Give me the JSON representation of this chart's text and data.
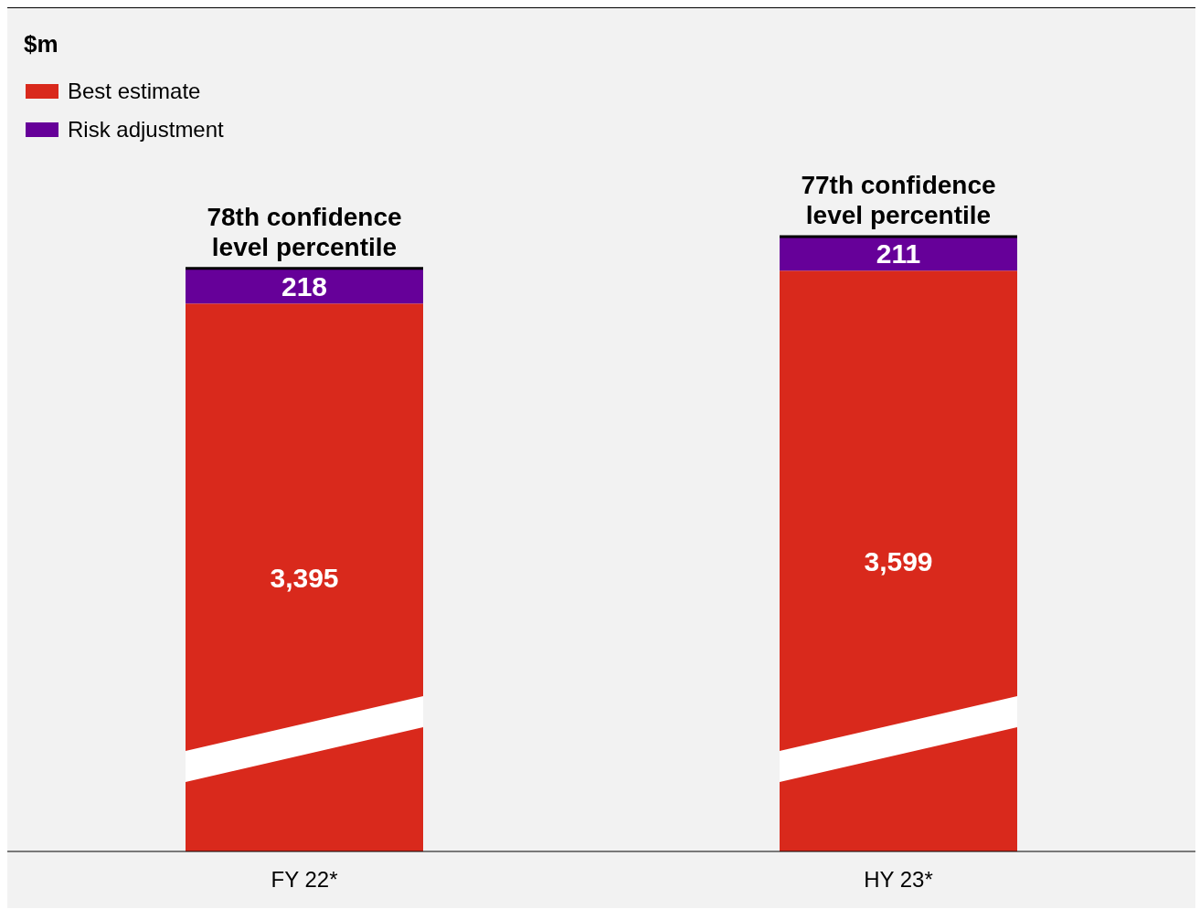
{
  "chart_data": {
    "type": "bar",
    "categories": [
      "FY 22*",
      "HY 23*"
    ],
    "stacked": true,
    "legend": "top left",
    "series": [
      {
        "name": "Best estimate",
        "color": "#d9291c",
        "values": [
          3395,
          3599
        ],
        "value_labels": [
          "3,395",
          "3,599"
        ]
      },
      {
        "name": "Risk adjustment",
        "color": "#660099",
        "values": [
          218,
          211
        ],
        "value_labels": [
          "218",
          "211"
        ]
      }
    ],
    "annotations": [
      "$m",
      {
        "text": "78th confidence level percentile",
        "x": "FY 22*",
        "y": 3613
      },
      {
        "text": "77th confidence level percentile",
        "x": "HY 23*",
        "y": 3810
      }
    ]
  }
}
